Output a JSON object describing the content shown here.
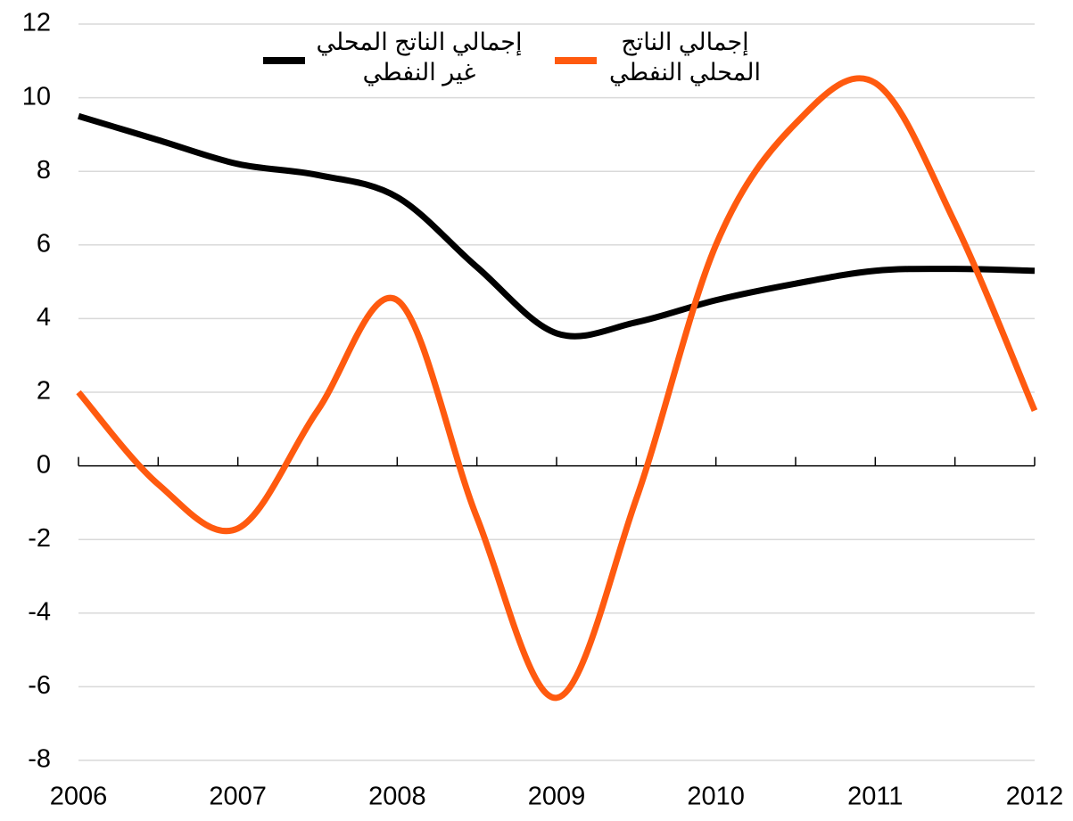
{
  "chart_data": {
    "type": "line",
    "x": [
      2006,
      2006.5,
      2007,
      2007.5,
      2008,
      2008.5,
      2009,
      2009.5,
      2010,
      2010.5,
      2011,
      2011.5,
      2012
    ],
    "series": [
      {
        "name": "إجمالي الناتج المحلي\nغير النفطي",
        "color": "#000000",
        "values": [
          9.5,
          8.85,
          8.2,
          7.9,
          7.3,
          5.4,
          3.6,
          3.9,
          4.5,
          4.95,
          5.3,
          5.35,
          5.3
        ]
      },
      {
        "name": "إجمالي الناتج\nالمحلي النفطي",
        "color": "#ff5a0f",
        "values": [
          2.0,
          -0.5,
          -1.7,
          1.5,
          4.5,
          -1.4,
          -6.3,
          -0.9,
          6.0,
          9.3,
          10.4,
          6.6,
          1.5
        ]
      }
    ],
    "xlim": [
      2006,
      2012
    ],
    "xticks": [
      2006,
      2007,
      2008,
      2009,
      2010,
      2011,
      2012
    ],
    "minor_xticks": [
      2006.5,
      2007.5,
      2008.5,
      2009.5,
      2010.5,
      2011.5
    ],
    "ylim": [
      -8,
      12
    ],
    "yticks": [
      -8,
      -6,
      -4,
      -2,
      0,
      2,
      4,
      6,
      8,
      10,
      12
    ],
    "grid": true,
    "legend": "top"
  }
}
